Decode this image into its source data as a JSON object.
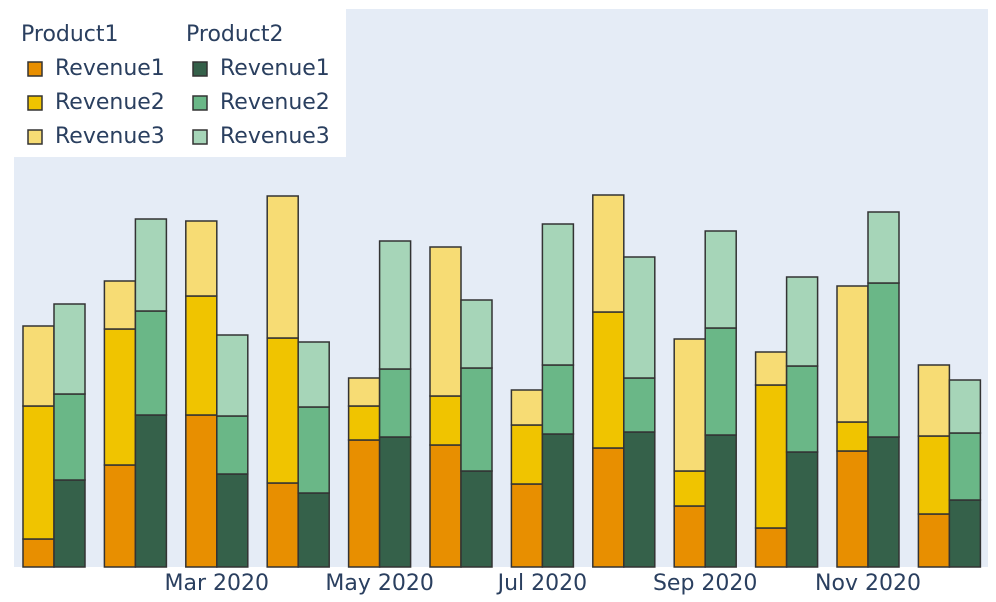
{
  "chart_data": {
    "type": "bar",
    "mode": "grouped-stacked",
    "categories": [
      null,
      null,
      "Mar 2020",
      null,
      "May 2020",
      null,
      "Jul 2020",
      null,
      "Sep 2020",
      null,
      "Nov 2020",
      null
    ],
    "ylim": [
      0,
      558
    ],
    "groups": [
      {
        "name": "Product1",
        "series": [
          {
            "name": "Revenue1",
            "color": "#e88f00",
            "values": [
              28,
              102,
              152,
              84,
              127,
              122,
              83,
              119,
              61,
              39,
              116,
              53
            ]
          },
          {
            "name": "Revenue2",
            "color": "#f0c400",
            "values": [
              133,
              136,
              119,
              145,
              34,
              49,
              59,
              136,
              35,
              143,
              29,
              78
            ]
          },
          {
            "name": "Revenue3",
            "color": "#f7dc74",
            "values": [
              80,
              48,
              75,
              142,
              28,
              149,
              35,
              117,
              132,
              33,
              136,
              71
            ]
          }
        ]
      },
      {
        "name": "Product2",
        "series": [
          {
            "name": "Revenue1",
            "color": "#35614a",
            "values": [
              87,
              152,
              93,
              74,
              130,
              96,
              133,
              135,
              132,
              115,
              130,
              67
            ]
          },
          {
            "name": "Revenue2",
            "color": "#6ab787",
            "values": [
              86,
              104,
              58,
              86,
              68,
              103,
              69,
              54,
              107,
              86,
              154,
              67
            ]
          },
          {
            "name": "Revenue3",
            "color": "#a6d5b8",
            "values": [
              90,
              92,
              81,
              65,
              128,
              68,
              141,
              121,
              97,
              89,
              71,
              53
            ]
          }
        ]
      }
    ]
  }
}
